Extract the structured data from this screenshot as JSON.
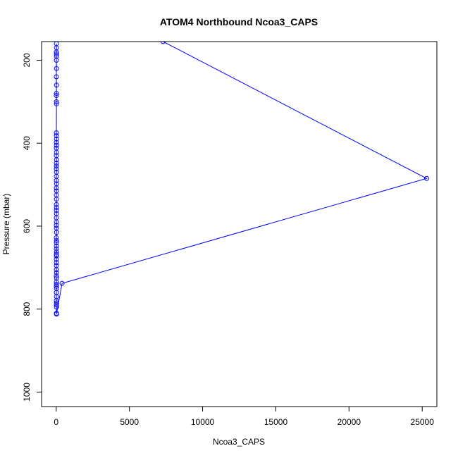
{
  "chart_data": {
    "type": "line",
    "title": "ATOM4 Northbound Ncoa3_CAPS",
    "xlabel": "Ncoa3_CAPS",
    "ylabel": "Pressure (mbar)",
    "xlim": [
      -1000,
      26000
    ],
    "ylim": [
      1035,
      155
    ],
    "y_reversed": true,
    "grid": false,
    "line_color": "#0000ff",
    "marker": "open-circle",
    "x_ticks": [
      0,
      5000,
      10000,
      15000,
      20000,
      25000
    ],
    "x_tick_labels": [
      "0",
      "5000",
      "10000",
      "15000",
      "20000",
      "25000"
    ],
    "y_ticks": [
      200,
      400,
      600,
      800,
      1000
    ],
    "y_tick_labels": [
      "200",
      "400",
      "600",
      "800",
      "1000"
    ],
    "series": [
      {
        "x": [
          7300,
          25300,
          400,
          20,
          15,
          18,
          12,
          22,
          10,
          16,
          14,
          20,
          11,
          17,
          13,
          19,
          9,
          21,
          15,
          12,
          18,
          10,
          16,
          14,
          20,
          11,
          17,
          13,
          19,
          9,
          21,
          15,
          12,
          18,
          10,
          16,
          14,
          20,
          11,
          17,
          13,
          19,
          9,
          21,
          15,
          12,
          18,
          10,
          16,
          14,
          20,
          11,
          17,
          13,
          19,
          9,
          21,
          15,
          12,
          18,
          10,
          16,
          14,
          20,
          11,
          17,
          13,
          19,
          9,
          21,
          15,
          12
        ],
        "y": [
          155,
          485,
          738,
          812,
          810,
          795,
          790,
          785,
          780,
          770,
          760,
          750,
          745,
          740,
          735,
          725,
          720,
          712,
          705,
          695,
          688,
          680,
          672,
          668,
          662,
          655,
          648,
          640,
          635,
          628,
          615,
          605,
          598,
          590,
          580,
          570,
          562,
          555,
          548,
          535,
          525,
          515,
          508,
          498,
          490,
          480,
          470,
          462,
          455,
          448,
          440,
          430,
          422,
          412,
          405,
          398,
          390,
          382,
          375,
          305,
          285,
          185,
          160,
          170,
          180,
          190,
          200,
          220,
          240,
          260,
          280,
          300
        ]
      }
    ]
  }
}
